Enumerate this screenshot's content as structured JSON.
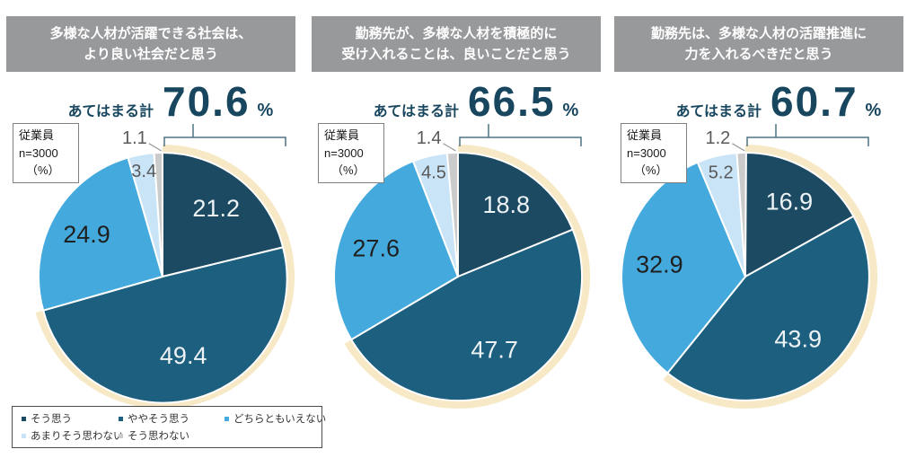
{
  "survey_box": {
    "line1": "従業員",
    "line2": "n=3000",
    "line3": "（%）"
  },
  "total_label": "あてはまる計",
  "percent_sign": "%",
  "palette": {
    "slices": [
      "#1c4a63",
      "#1d5f7e",
      "#44aadd",
      "#c8e4f6",
      "#cbcbcb"
    ],
    "highlight": "#f8e9c6",
    "bracket": "#4d7483",
    "header_bg": "#98999b",
    "stat_text": "#17465e"
  },
  "legend": {
    "items": [
      {
        "label": "そう思う",
        "color": "#1c4a63"
      },
      {
        "label": "ややそう思う",
        "color": "#1d5f7e"
      },
      {
        "label": "どちらともいえない",
        "color": "#44aadd"
      },
      {
        "label": "あまりそう思わない",
        "color": "#c8e4f6"
      },
      {
        "label": "そう思わない",
        "color": "#cbcbcb"
      }
    ]
  },
  "chart_data": [
    {
      "type": "pie",
      "title_line1": "多様な人材が活躍できる社会は、",
      "title_line2": "より良い社会だと思う",
      "total": "70.6",
      "n": 3000,
      "unit": "%",
      "categories": [
        "そう思う",
        "ややそう思う",
        "どちらともいえない",
        "あまりそう思わない",
        "そう思わない"
      ],
      "values": [
        21.2,
        49.4,
        24.9,
        3.4,
        1.1
      ],
      "labels": [
        "21.2",
        "49.4",
        "24.9",
        "3.4",
        "1.1"
      ]
    },
    {
      "type": "pie",
      "title_line1": "勤務先が、多様な人材を積極的に",
      "title_line2": "受け入れることは、良いことだと思う",
      "total": "66.5",
      "n": 3000,
      "unit": "%",
      "categories": [
        "そう思う",
        "ややそう思う",
        "どちらともいえない",
        "あまりそう思わない",
        "そう思わない"
      ],
      "values": [
        18.8,
        47.7,
        27.6,
        4.5,
        1.4
      ],
      "labels": [
        "18.8",
        "47.7",
        "27.6",
        "4.5",
        "1.4"
      ]
    },
    {
      "type": "pie",
      "title_line1": "勤務先は、多様な人材の活躍推進に",
      "title_line2": "力を入れるべきだと思う",
      "total": "60.7",
      "n": 3000,
      "unit": "%",
      "categories": [
        "そう思う",
        "ややそう思う",
        "どちらともいえない",
        "あまりそう思わない",
        "そう思わない"
      ],
      "values": [
        16.9,
        43.9,
        32.9,
        5.2,
        1.2
      ],
      "labels": [
        "16.9",
        "43.9",
        "32.9",
        "5.2",
        "1.2"
      ]
    }
  ]
}
